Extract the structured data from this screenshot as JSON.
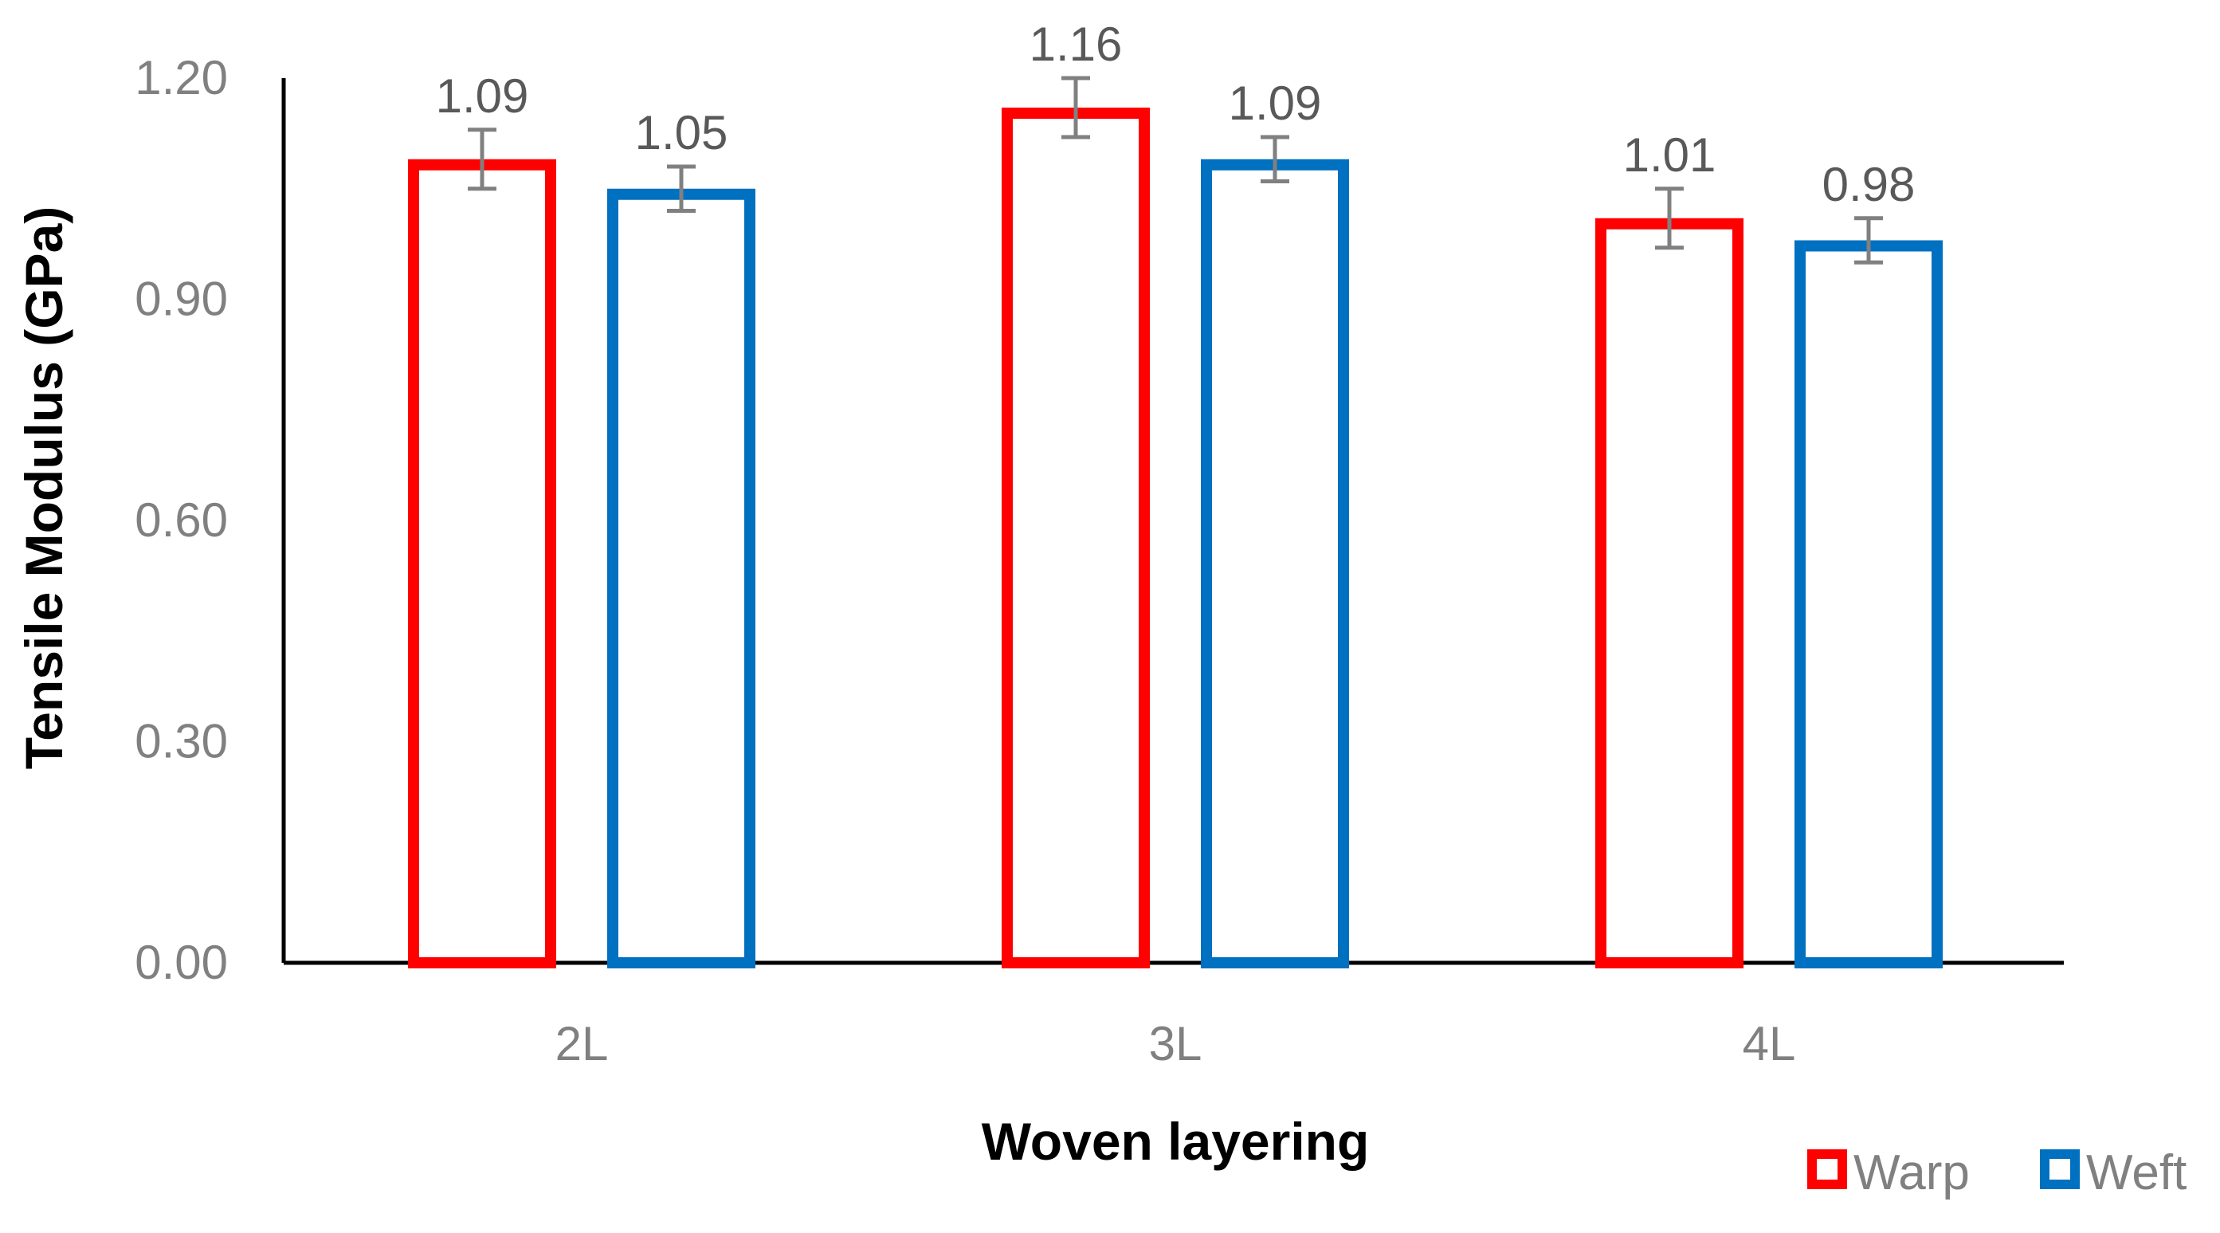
{
  "chart_data": {
    "type": "bar",
    "title": "",
    "xlabel": "Woven layering",
    "ylabel": "Tensile Modulus (GPa)",
    "categories": [
      "2L",
      "3L",
      "4L"
    ],
    "ylim": [
      0,
      1.2
    ],
    "yticks": [
      "0.00",
      "0.30",
      "0.60",
      "0.90",
      "1.20"
    ],
    "grid": false,
    "legend_position": "bottom-right",
    "series": [
      {
        "name": "Warp",
        "color": "#ff0000",
        "values": [
          1.09,
          1.16,
          1.01
        ],
        "labels": [
          "1.09",
          "1.16",
          "1.01"
        ],
        "errors": [
          0.04,
          0.04,
          0.04
        ]
      },
      {
        "name": "Weft",
        "color": "#0070c0",
        "values": [
          1.05,
          1.09,
          0.98
        ],
        "labels": [
          "1.05",
          "1.09",
          "0.98"
        ],
        "errors": [
          0.03,
          0.03,
          0.03
        ]
      }
    ],
    "errorbar_color": "#808080",
    "tick_label_color": "#808080",
    "data_label_color": "#595959",
    "axis_color": "#000000"
  }
}
